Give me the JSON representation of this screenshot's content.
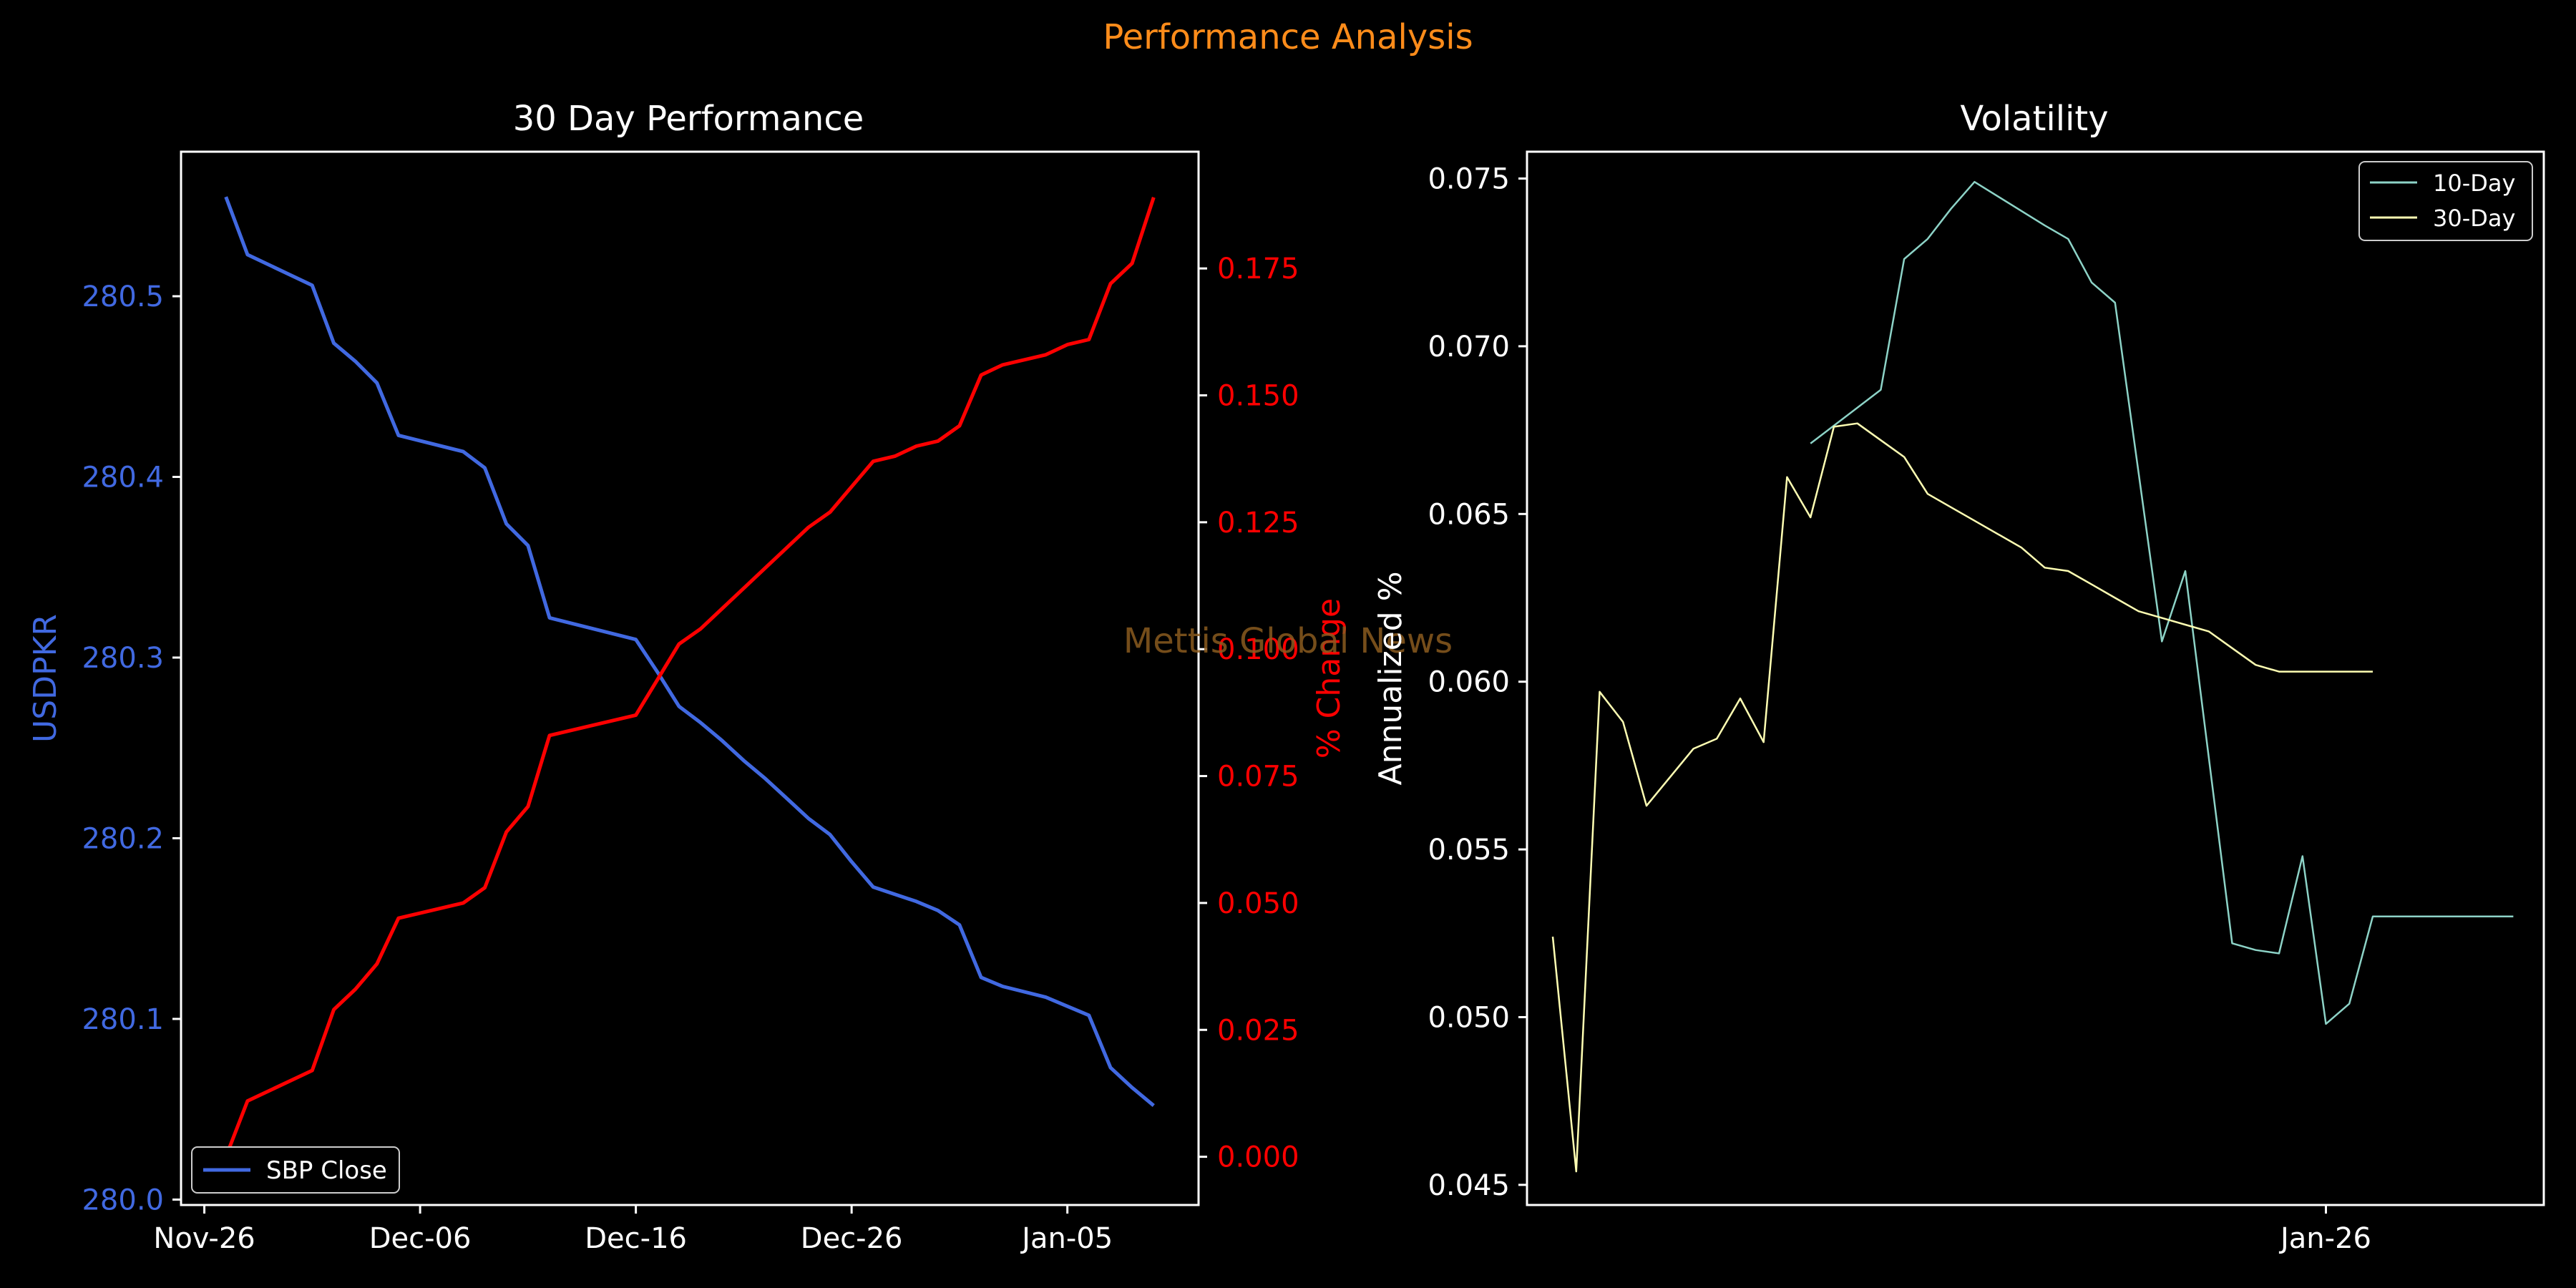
{
  "suptitle": "Performance Analysis",
  "watermark": "Mettis Global News",
  "colors": {
    "background": "#000000",
    "suptitle": "#ff8c1a",
    "watermark": "#8a5a1e",
    "close_line": "#4169e1",
    "pct_line": "#ff0000",
    "vol10": "#8dd3c7",
    "vol30": "#ffffb3",
    "axes": "#ffffff"
  },
  "chart_data": [
    {
      "type": "line",
      "title": "30 Day Performance",
      "x_ticks": [
        "Nov-26",
        "Dec-06",
        "Dec-16",
        "Dec-26",
        "Jan-05"
      ],
      "y_left": {
        "label": "USDPKR",
        "ticks": [
          "280.0",
          "280.1",
          "280.2",
          "280.3",
          "280.4",
          "280.5"
        ],
        "ylim": [
          279.997,
          280.58
        ]
      },
      "y_right": {
        "label": "% Change",
        "ticks": [
          "0.000",
          "0.025",
          "0.050",
          "0.075",
          "0.100",
          "0.125",
          "0.150",
          "0.175"
        ],
        "ylim": [
          -0.0095,
          0.198
        ]
      },
      "xlim": [
        -1.08,
        46.08
      ],
      "legend": {
        "position": "lower-left",
        "entries": [
          "SBP Close"
        ]
      },
      "series": [
        {
          "name": "SBP Close",
          "axis": "left",
          "x": [
            1,
            2,
            5,
            6,
            7,
            8,
            9,
            12,
            13,
            14,
            15,
            16,
            20,
            21,
            22,
            23,
            24,
            25,
            26,
            27,
            28,
            29,
            30,
            31,
            32,
            33,
            34,
            35,
            36,
            37,
            39,
            40,
            41,
            42,
            43,
            44
          ],
          "values": [
            280.555,
            280.523,
            280.506,
            280.474,
            280.464,
            280.452,
            280.423,
            280.414,
            280.405,
            280.374,
            280.362,
            280.322,
            280.31,
            280.292,
            280.273,
            280.264,
            280.254,
            280.243,
            280.233,
            280.222,
            280.211,
            280.202,
            280.187,
            280.173,
            280.169,
            280.165,
            280.16,
            280.152,
            280.123,
            280.118,
            280.112,
            280.107,
            280.102,
            280.073,
            280.062,
            280.052
          ]
        },
        {
          "name": "% Change",
          "axis": "right",
          "x": [
            1,
            2,
            5,
            6,
            7,
            8,
            9,
            12,
            13,
            14,
            15,
            16,
            20,
            21,
            22,
            23,
            24,
            25,
            26,
            27,
            28,
            29,
            30,
            31,
            32,
            33,
            34,
            35,
            36,
            37,
            39,
            40,
            41,
            42,
            43,
            44
          ],
          "values": [
            0.0,
            0.011,
            0.017,
            0.029,
            0.033,
            0.038,
            0.047,
            0.05,
            0.053,
            0.064,
            0.069,
            0.083,
            0.087,
            0.094,
            0.101,
            0.104,
            0.108,
            0.112,
            0.116,
            0.12,
            0.124,
            0.127,
            0.132,
            0.137,
            0.138,
            0.14,
            0.141,
            0.144,
            0.154,
            0.156,
            0.158,
            0.16,
            0.161,
            0.172,
            0.176,
            0.189
          ]
        }
      ]
    },
    {
      "type": "line",
      "title": "Volatility",
      "ylabel": "Annualized %",
      "x_ticks": [
        "Jan-26"
      ],
      "y_ticks": [
        "0.045",
        "0.050",
        "0.055",
        "0.060",
        "0.065",
        "0.070",
        "0.075"
      ],
      "ylim": [
        0.0444,
        0.0758
      ],
      "xlim": [
        -0.1,
        43.3
      ],
      "legend": {
        "position": "top-right",
        "entries": [
          "10-Day",
          "30-Day"
        ]
      },
      "series": [
        {
          "name": "10-Day",
          "x": [
            12,
            15,
            16,
            17,
            18,
            19,
            22,
            23,
            24,
            25,
            27,
            28,
            30,
            31,
            32,
            33,
            34,
            35,
            36,
            37,
            38,
            39,
            40,
            41,
            42
          ],
          "values": [
            0.0671,
            0.0687,
            0.0726,
            0.0732,
            0.0741,
            0.0749,
            0.0736,
            0.0732,
            0.0719,
            0.0713,
            0.0612,
            0.0633,
            0.0522,
            0.052,
            0.0519,
            0.0548,
            0.0498,
            0.0504,
            0.053,
            0.053,
            0.053,
            0.053,
            0.053,
            0.053,
            0.053
          ]
        },
        {
          "name": "30-Day",
          "x": [
            1,
            2,
            3,
            4,
            5,
            7,
            8,
            9,
            10,
            11,
            12,
            13,
            14,
            15,
            16,
            17,
            18,
            19,
            20,
            21,
            22,
            23,
            24,
            25,
            26,
            27,
            28,
            29,
            30,
            31,
            32,
            33,
            34,
            35,
            36
          ],
          "values": [
            0.0524,
            0.0454,
            0.0597,
            0.0588,
            0.0563,
            0.058,
            0.0583,
            0.0595,
            0.0582,
            0.0661,
            0.0649,
            0.0676,
            0.0677,
            0.0672,
            0.0667,
            0.0656,
            0.0652,
            0.0648,
            0.0644,
            0.064,
            0.0634,
            0.0633,
            0.0629,
            0.0625,
            0.0621,
            0.0619,
            0.0617,
            0.0615,
            0.061,
            0.0605,
            0.0603,
            0.0603,
            0.0603,
            0.0603,
            0.0603
          ]
        }
      ]
    }
  ]
}
